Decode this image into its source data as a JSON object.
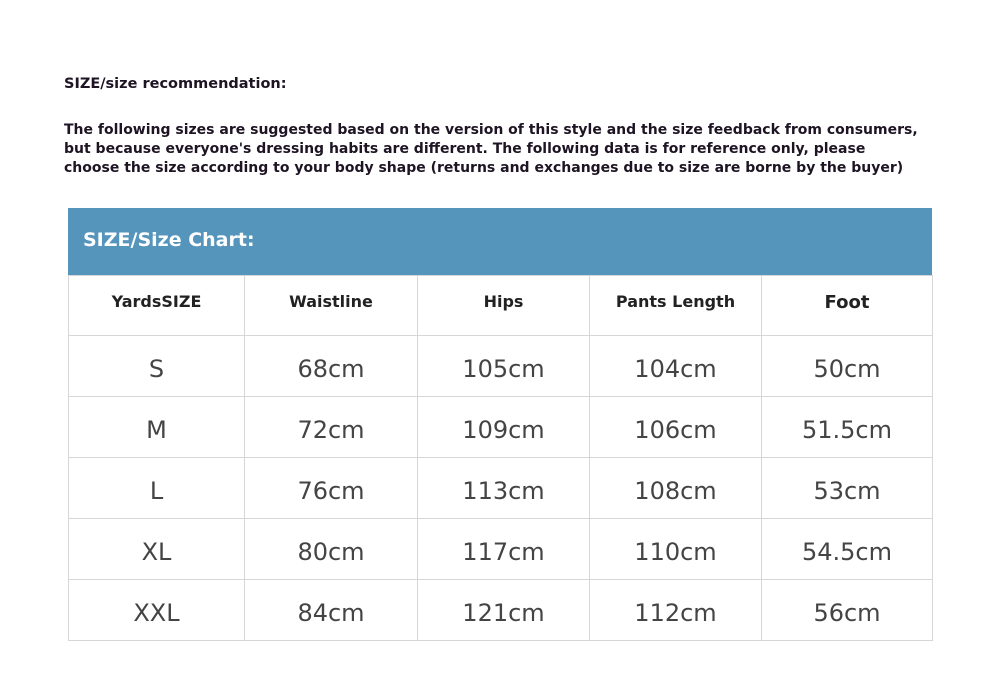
{
  "title": "SIZE/size recommendation:",
  "paragraph_lines": [
    "The following sizes are suggested based on the version of this style and the size feedback from consumers,",
    "but because everyone's dressing habits are different. The following data is for reference only, please",
    "choose the size according to your body shape (returns and exchanges due to size are borne by the buyer)"
  ],
  "chart": {
    "heading": "SIZE/Size Chart:",
    "header_color": "#5594bb",
    "columns": [
      "YardsSIZE",
      "Waistline",
      "Hips",
      "Pants Length",
      "Foot"
    ],
    "rows": [
      [
        "S",
        "68cm",
        "105cm",
        "104cm",
        "50cm"
      ],
      [
        "M",
        "72cm",
        "109cm",
        "106cm",
        "51.5cm"
      ],
      [
        "L",
        "76cm",
        "113cm",
        "108cm",
        "53cm"
      ],
      [
        "XL",
        "80cm",
        "117cm",
        "110cm",
        "54.5cm"
      ],
      [
        "XXL",
        "84cm",
        "121cm",
        "112cm",
        "56cm"
      ]
    ]
  }
}
